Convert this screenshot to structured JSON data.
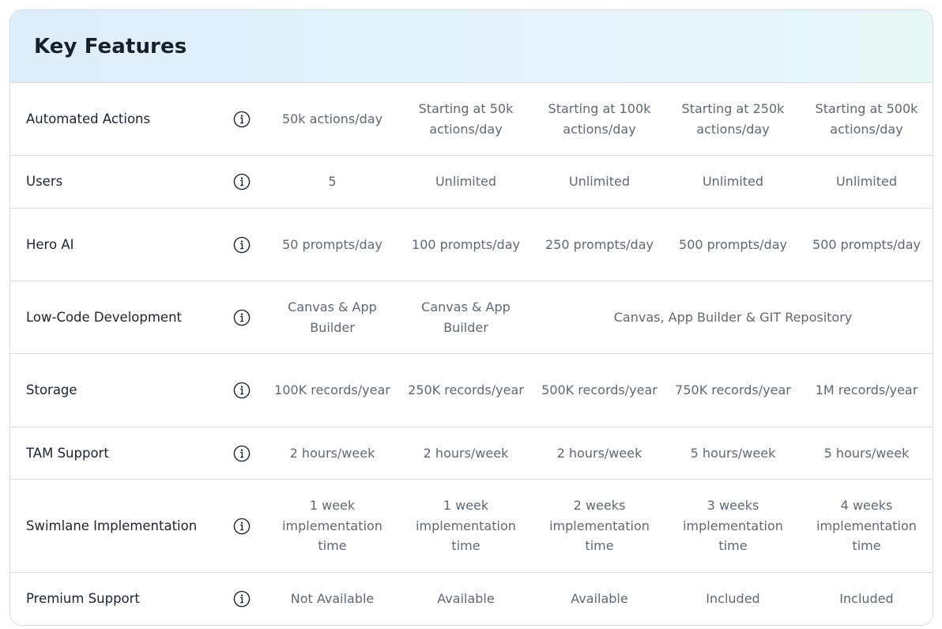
{
  "header": {
    "title": "Key Features"
  },
  "rows": [
    {
      "feature": "Automated Actions",
      "values": [
        "50k actions/day",
        "Starting at 50k actions/day",
        "Starting at 100k actions/day",
        "Starting at 250k actions/day",
        "Starting at 500k actions/day"
      ]
    },
    {
      "feature": "Users",
      "values": [
        "5",
        "Unlimited",
        "Unlimited",
        "Unlimited",
        "Unlimited"
      ]
    },
    {
      "feature": "Hero AI",
      "values": [
        "50 prompts/day",
        "100 prompts/day",
        "250 prompts/day",
        "500 prompts/day",
        "500 prompts/day"
      ]
    },
    {
      "feature": "Low-Code Development",
      "values": [
        "Canvas & App Builder",
        "Canvas & App Builder",
        "Canvas, App Builder & GIT Repository"
      ]
    },
    {
      "feature": "Storage",
      "values": [
        "100K records/year",
        "250K records/year",
        "500K records/year",
        "750K records/year",
        "1M records/year"
      ]
    },
    {
      "feature": "TAM Support",
      "values": [
        "2 hours/week",
        "2 hours/week",
        "2 hours/week",
        "5 hours/week",
        "5 hours/week"
      ]
    },
    {
      "feature": "Swimlane Implementation",
      "values": [
        "1 week implementation time",
        "1 week implementation time",
        "2 weeks implementation time",
        "3 weeks implementation time",
        "4 weeks implementation time"
      ]
    },
    {
      "feature": "Premium Support",
      "values": [
        "Not Available",
        "Available",
        "Available",
        "Included",
        "Included"
      ]
    }
  ],
  "icons": {
    "info": "info-circle-icon"
  },
  "colors": {
    "header_gradient_start": "#deeefa",
    "header_gradient_end": "#e8f7f8",
    "border": "#d7dde4",
    "title": "#16202c",
    "feature_text": "#1b2430",
    "value_text": "#5f6873"
  }
}
